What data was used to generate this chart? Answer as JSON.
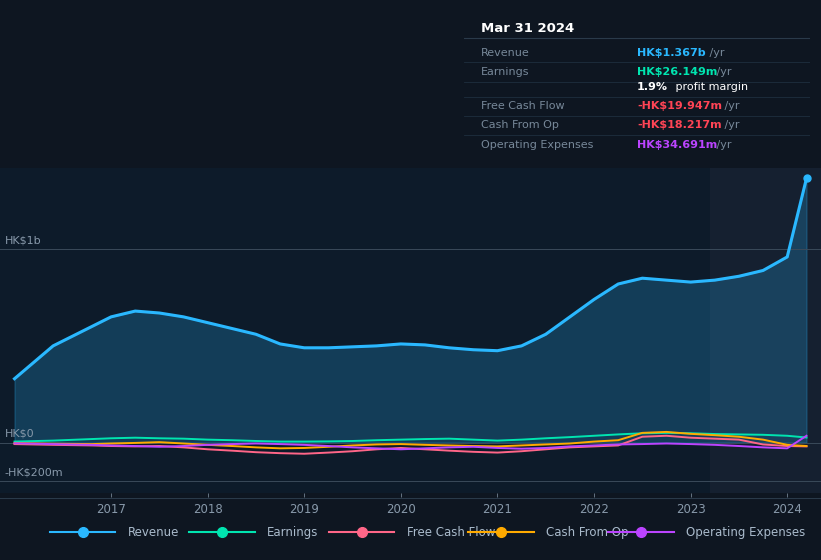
{
  "background_color": "#0e1621",
  "plot_bg_color": "#0d1b2a",
  "highlight_bg_color": "#152030",
  "title_box": {
    "date": "Mar 31 2024",
    "rows": [
      {
        "label": "Revenue",
        "value": "HK$1.367b",
        "yr": " /yr",
        "value_color": "#2ab8ff"
      },
      {
        "label": "Earnings",
        "value": "HK$26.149m",
        "yr": " /yr",
        "value_color": "#00e5b0"
      },
      {
        "label": "",
        "value": "1.9%",
        "yr": " profit margin",
        "value_color": "#ffffff"
      },
      {
        "label": "Free Cash Flow",
        "value": "-HK$19.947m",
        "yr": " /yr",
        "value_color": "#ff4455"
      },
      {
        "label": "Cash From Op",
        "value": "-HK$18.217m",
        "yr": " /yr",
        "value_color": "#ff4455"
      },
      {
        "label": "Operating Expenses",
        "value": "HK$34.691m",
        "yr": " /yr",
        "value_color": "#bb44ff"
      }
    ]
  },
  "ylabel_top": "HK$1b",
  "ylabel_zero": "HK$0",
  "ylabel_bottom": "-HK$200m",
  "x_years": [
    2016.0,
    2016.4,
    2016.8,
    2017.0,
    2017.25,
    2017.5,
    2017.75,
    2018.0,
    2018.25,
    2018.5,
    2018.75,
    2019.0,
    2019.25,
    2019.5,
    2019.75,
    2020.0,
    2020.25,
    2020.5,
    2020.75,
    2021.0,
    2021.25,
    2021.5,
    2021.75,
    2022.0,
    2022.25,
    2022.5,
    2022.75,
    2023.0,
    2023.25,
    2023.5,
    2023.75,
    2024.0,
    2024.2
  ],
  "revenue": [
    330,
    500,
    600,
    650,
    680,
    670,
    650,
    620,
    590,
    560,
    510,
    490,
    490,
    495,
    500,
    510,
    505,
    490,
    480,
    475,
    500,
    560,
    650,
    740,
    820,
    850,
    840,
    830,
    840,
    860,
    890,
    960,
    1367
  ],
  "earnings": [
    5,
    10,
    18,
    22,
    25,
    22,
    20,
    15,
    12,
    8,
    5,
    5,
    6,
    8,
    12,
    15,
    18,
    20,
    15,
    10,
    15,
    22,
    28,
    35,
    42,
    48,
    50,
    48,
    44,
    42,
    40,
    35,
    26
  ],
  "free_cash": [
    -8,
    -12,
    -15,
    -18,
    -20,
    -18,
    -25,
    -35,
    -42,
    -50,
    -55,
    -58,
    -52,
    -45,
    -35,
    -28,
    -35,
    -42,
    -48,
    -52,
    -45,
    -35,
    -25,
    -20,
    -15,
    30,
    35,
    25,
    20,
    15,
    -10,
    -18,
    -20
  ],
  "cash_from_op": [
    -3,
    -6,
    -8,
    -5,
    -2,
    2,
    -5,
    -12,
    -18,
    -25,
    -30,
    -28,
    -22,
    -15,
    -10,
    -8,
    -12,
    -15,
    -18,
    -20,
    -15,
    -10,
    -5,
    5,
    12,
    50,
    55,
    45,
    38,
    30,
    15,
    -12,
    -18
  ],
  "op_expenses": [
    -4,
    -8,
    -12,
    -15,
    -18,
    -22,
    -18,
    -12,
    -8,
    -5,
    -8,
    -12,
    -18,
    -25,
    -30,
    -35,
    -30,
    -25,
    -22,
    -28,
    -32,
    -28,
    -20,
    -15,
    -10,
    -8,
    -5,
    -8,
    -12,
    -18,
    -25,
    -30,
    35
  ],
  "revenue_color": "#2ab8ff",
  "earnings_color": "#00e5b0",
  "free_cash_color": "#ff6688",
  "cash_from_op_color": "#ffaa00",
  "op_expenses_color": "#bb44ff",
  "legend_items": [
    {
      "label": "Revenue",
      "color": "#2ab8ff"
    },
    {
      "label": "Earnings",
      "color": "#00e5b0"
    },
    {
      "label": "Free Cash Flow",
      "color": "#ff6688"
    },
    {
      "label": "Cash From Op",
      "color": "#ffaa00"
    },
    {
      "label": "Operating Expenses",
      "color": "#bb44ff"
    }
  ],
  "x_tick_labels": [
    "2017",
    "2018",
    "2019",
    "2020",
    "2021",
    "2022",
    "2023",
    "2024"
  ],
  "x_tick_positions": [
    2017,
    2018,
    2019,
    2020,
    2021,
    2022,
    2023,
    2024
  ],
  "highlight_start": 2023.2,
  "highlight_end": 2024.35,
  "ylim": [
    -260,
    1420
  ],
  "hline_1b": 1000,
  "hline_0": 0,
  "hline_neg200": -200,
  "xlim_left": 2015.85,
  "xlim_right": 2024.35
}
